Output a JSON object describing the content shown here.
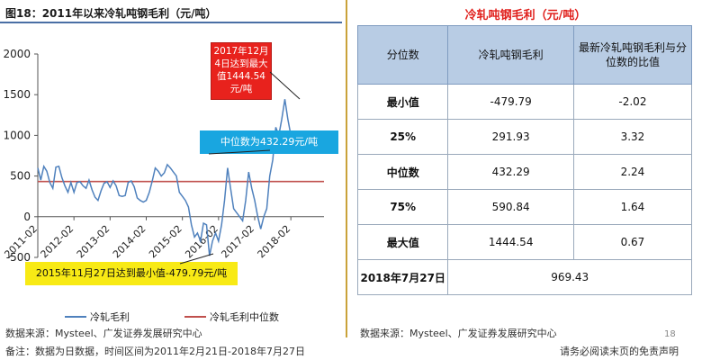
{
  "left_title": "图18：2011年以来冷轧吨钢毛利（元/吨）",
  "chart_data": {
    "type": "line",
    "title": "",
    "xlabel": "",
    "ylabel": "",
    "ylim": [
      -500,
      2000
    ],
    "yticks": [
      "2000",
      "1500",
      "1000",
      "500",
      "0",
      "-500"
    ],
    "xticks": [
      "2011-02",
      "2012-02",
      "2013-02",
      "2014-02",
      "2015-02",
      "2016-02",
      "2017-02",
      "2018-02"
    ],
    "series": [
      {
        "name": "冷轧毛利",
        "color": "#4f81bd",
        "x": [
          "2011-02",
          "2011-03",
          "2011-04",
          "2011-05",
          "2011-06",
          "2011-07",
          "2011-08",
          "2011-09",
          "2011-10",
          "2011-11",
          "2011-12",
          "2012-01",
          "2012-02",
          "2012-03",
          "2012-04",
          "2012-05",
          "2012-06",
          "2012-07",
          "2012-08",
          "2012-09",
          "2012-10",
          "2012-11",
          "2012-12",
          "2013-01",
          "2013-02",
          "2013-03",
          "2013-04",
          "2013-05",
          "2013-06",
          "2013-07",
          "2013-08",
          "2013-09",
          "2013-10",
          "2013-11",
          "2013-12",
          "2014-01",
          "2014-02",
          "2014-03",
          "2014-04",
          "2014-05",
          "2014-06",
          "2014-07",
          "2014-08",
          "2014-09",
          "2014-10",
          "2014-11",
          "2014-12",
          "2015-01",
          "2015-02",
          "2015-03",
          "2015-04",
          "2015-05",
          "2015-06",
          "2015-07",
          "2015-08",
          "2015-09",
          "2015-10",
          "2015-11",
          "2015-12",
          "2016-01",
          "2016-02",
          "2016-03",
          "2016-04",
          "2016-05",
          "2016-06",
          "2016-07",
          "2016-08",
          "2016-09",
          "2016-10",
          "2016-11",
          "2016-12",
          "2017-01",
          "2017-02",
          "2017-03",
          "2017-04",
          "2017-05",
          "2017-06",
          "2017-07",
          "2017-08",
          "2017-09",
          "2017-10",
          "2017-11",
          "2017-12",
          "2018-01",
          "2018-02",
          "2018-03",
          "2018-04",
          "2018-05",
          "2018-06",
          "2018-07"
        ],
        "values": [
          600,
          450,
          620,
          560,
          420,
          350,
          610,
          620,
          480,
          380,
          300,
          420,
          300,
          420,
          430,
          380,
          350,
          450,
          330,
          240,
          200,
          320,
          410,
          430,
          360,
          440,
          380,
          260,
          250,
          260,
          420,
          440,
          370,
          230,
          200,
          180,
          200,
          300,
          440,
          600,
          560,
          500,
          540,
          640,
          600,
          550,
          500,
          300,
          250,
          200,
          120,
          -100,
          -250,
          -200,
          -300,
          -80,
          -100,
          -479.79,
          -300,
          -200,
          -300,
          -100,
          200,
          600,
          350,
          100,
          50,
          0,
          -50,
          200,
          550,
          350,
          200,
          0,
          -150,
          0,
          100,
          500,
          700,
          1100,
          1000,
          1200,
          1444.54,
          1200,
          1000,
          800,
          900,
          950,
          1000,
          969.43
        ]
      },
      {
        "name": "冷轧毛利中位数",
        "color": "#c0504d",
        "values_const": 432.29
      }
    ],
    "annotations": {
      "max": "2017年12月4日达到最大值1444.54元/吨",
      "median": "中位数为432.29元/吨",
      "min": "2015年11月27日达到最小值-479.79元/吨"
    }
  },
  "right_title": "冷轧吨钢毛利（元/吨）",
  "table": {
    "headers": [
      "分位数",
      "冷轧吨钢毛利",
      "最新冷轧吨钢毛利与分位数的比值"
    ],
    "rows": [
      {
        "label": "最小值",
        "value": "-479.79",
        "ratio": "-2.02"
      },
      {
        "label": "25%",
        "value": "291.93",
        "ratio": "3.32"
      },
      {
        "label": "中位数",
        "value": "432.29",
        "ratio": "2.24"
      },
      {
        "label": "75%",
        "value": "590.84",
        "ratio": "1.64"
      },
      {
        "label": "最大值",
        "value": "1444.54",
        "ratio": "0.67"
      }
    ],
    "latest_label": "2018年7月27日",
    "latest_value": "969.43"
  },
  "source_left": "数据来源：Mysteel、广发证券发展研究中心",
  "note_left": "备注：数据为日数据，时间区间为2011年2月21日-2018年7月27日",
  "source_right": "数据来源：Mysteel、广发证券发展研究中心",
  "footer_right": "请务必阅读末页的免责声明",
  "page_number": "18"
}
